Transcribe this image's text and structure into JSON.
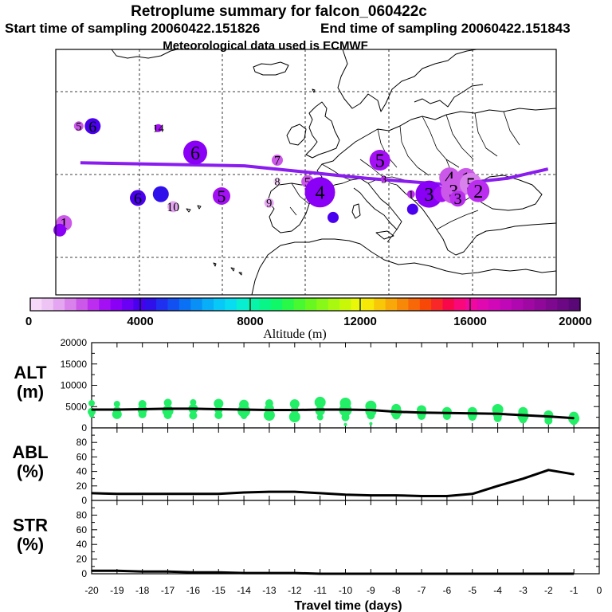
{
  "header": {
    "title": "Retroplume summary for falcon_060422c",
    "start_label": "Start time of sampling 20060422.151826",
    "end_label": "End time of sampling 20060422.151843",
    "met_label": "Meteorological data used is ECMWF"
  },
  "colors": {
    "trajectory": "#8a1cf0",
    "alt_dots": "#22ee66",
    "lines": "#000000",
    "coast": "#000000",
    "colorbar": [
      "#f6d8f8",
      "#eec4f4",
      "#e4a6f0",
      "#d982ec",
      "#cc58ea",
      "#bb2ef0",
      "#a410f4",
      "#8a00f6",
      "#6a00f4",
      "#4a00ee",
      "#3010ea",
      "#2030f0",
      "#1250f2",
      "#0a70f4",
      "#0890f6",
      "#08aef8",
      "#08c8f8",
      "#08dcf0",
      "#08eed0",
      "#08f4a8",
      "#08f688",
      "#10f868",
      "#28f848",
      "#48f830",
      "#68f820",
      "#88f818",
      "#a8f810",
      "#c8f808",
      "#e8f808",
      "#f8e808",
      "#f8c808",
      "#f8a808",
      "#f88808",
      "#f86808",
      "#f84808",
      "#f82828",
      "#f80848",
      "#f80878",
      "#f008a0",
      "#e008b0",
      "#d008b8",
      "#c008b8",
      "#b008b0",
      "#a008a4",
      "#90089a",
      "#7e0890",
      "#6c0884",
      "#5a0878"
    ]
  },
  "map": {
    "trajectory_points": [
      [
        -35,
        42
      ],
      [
        -15,
        41.5
      ],
      [
        0,
        39.5
      ],
      [
        10,
        38.5
      ],
      [
        17,
        39.5
      ],
      [
        22,
        41
      ]
    ],
    "clusters": [
      {
        "lon": -35.2,
        "lat": 47.8,
        "size": 6,
        "color": "#cc58ea",
        "label": "5"
      },
      {
        "lon": -33.5,
        "lat": 47.8,
        "size": 10,
        "color": "#4a00ee",
        "label": "6"
      },
      {
        "lon": -25.5,
        "lat": 47.5,
        "size": 5,
        "color": "#a410f4",
        "label": "14"
      },
      {
        "lon": -21,
        "lat": 43.6,
        "size": 15,
        "color": "#8a00f6",
        "label": "6"
      },
      {
        "lon": -28,
        "lat": 36.4,
        "size": 10,
        "color": "#4a00ee",
        "label": "6"
      },
      {
        "lon": -25.2,
        "lat": 37,
        "size": 10,
        "color": "#3010ea",
        "label": ""
      },
      {
        "lon": -23.7,
        "lat": 35,
        "size": 7,
        "color": "#e4a6f0",
        "label": "10"
      },
      {
        "lon": -17.8,
        "lat": 36.7,
        "size": 11,
        "color": "#a410f4",
        "label": "5"
      },
      {
        "lon": -11,
        "lat": 42.4,
        "size": 7,
        "color": "#cc58ea",
        "label": "7"
      },
      {
        "lon": -12,
        "lat": 35.6,
        "size": 6,
        "color": "#e4a6f0",
        "label": "9"
      },
      {
        "lon": -7.3,
        "lat": 39,
        "size": 8,
        "color": "#cc58ea",
        "label": "5"
      },
      {
        "lon": -11,
        "lat": 39,
        "size": 5,
        "color": "#f6d8f8",
        "label": "8"
      },
      {
        "lon": -5.8,
        "lat": 37.3,
        "size": 19,
        "color": "#8a00f6",
        "label": "4"
      },
      {
        "lon": -4.2,
        "lat": 33.3,
        "size": 7,
        "color": "#4a00ee",
        "label": ""
      },
      {
        "lon": 1.5,
        "lat": 42.4,
        "size": 13,
        "color": "#a410f4",
        "label": "5"
      },
      {
        "lon": 2,
        "lat": 39.4,
        "size": 4,
        "color": "#bb2ef0",
        "label": "3"
      },
      {
        "lon": 5.5,
        "lat": 34.6,
        "size": 7,
        "color": "#4a00ee",
        "label": ""
      },
      {
        "lon": 5.3,
        "lat": 37,
        "size": 5,
        "color": "#bb2ef0",
        "label": "1"
      },
      {
        "lon": 7.5,
        "lat": 37,
        "size": 17,
        "color": "#8a00f6",
        "label": "3"
      },
      {
        "lon": 9,
        "lat": 37,
        "size": 10,
        "color": "#a410f4",
        "label": ""
      },
      {
        "lon": 10,
        "lat": 39.6,
        "size": 13,
        "color": "#cc58ea",
        "label": "4"
      },
      {
        "lon": 10.5,
        "lat": 37.5,
        "size": 16,
        "color": "#cc58ea",
        "label": "3"
      },
      {
        "lon": 11,
        "lat": 36.3,
        "size": 10,
        "color": "#bb2ef0",
        "label": "3"
      },
      {
        "lon": 12,
        "lat": 39.5,
        "size": 13,
        "color": "#cc58ea",
        "label": "1"
      },
      {
        "lon": 12.6,
        "lat": 38.6,
        "size": 14,
        "color": "#d982ec",
        "label": "5"
      },
      {
        "lon": 13.5,
        "lat": 37.5,
        "size": 14,
        "color": "#bb2ef0",
        "label": "2"
      },
      {
        "lon": -37,
        "lat": 32.4,
        "size": 10,
        "color": "#cc58ea",
        "label": "1"
      },
      {
        "lon": -37.5,
        "lat": 31.3,
        "size": 8,
        "color": "#8a00f6",
        "label": ""
      }
    ],
    "lonrange": [
      -38,
      23
    ],
    "latrange": [
      21,
      60
    ]
  },
  "colorbar": {
    "tick_labels": [
      "0",
      "4000",
      "8000",
      "12000",
      "16000",
      "20000"
    ],
    "label": "Altitude (m)",
    "range": [
      0,
      20000
    ]
  },
  "chart_data": [
    {
      "type": "line",
      "panel": "ALT",
      "ylabel": "ALT\n(m)",
      "ylabel_line1": "ALT",
      "ylabel_line2": "(m)",
      "ylim": [
        0,
        20000
      ],
      "yticks": [
        0,
        5000,
        10000,
        15000,
        20000
      ],
      "ytick_labels": [
        "0",
        "5000",
        "10000",
        "15000",
        "20000"
      ],
      "x": [
        -20,
        -19,
        -18,
        -17,
        -16,
        -15,
        -14,
        -13,
        -12,
        -11,
        -10,
        -9,
        -8,
        -7,
        -6,
        -5,
        -4,
        -3,
        -2,
        -1
      ],
      "values": [
        4300,
        4300,
        4400,
        4500,
        4500,
        4400,
        4300,
        4200,
        4200,
        4300,
        4300,
        4200,
        3800,
        3600,
        3500,
        3400,
        3300,
        3000,
        2700,
        2300
      ],
      "scatter": [
        [
          -20,
          5800,
          4
        ],
        [
          -20,
          3800,
          5
        ],
        [
          -20,
          3000,
          3
        ],
        [
          -19,
          5600,
          4
        ],
        [
          -19,
          4100,
          5
        ],
        [
          -19,
          3200,
          6
        ],
        [
          -18,
          5600,
          5
        ],
        [
          -18,
          4200,
          6
        ],
        [
          -18,
          3200,
          5
        ],
        [
          -17,
          5900,
          5
        ],
        [
          -17,
          4000,
          7
        ],
        [
          -17,
          3000,
          5
        ],
        [
          -16,
          6000,
          4
        ],
        [
          -16,
          4500,
          6
        ],
        [
          -16,
          2900,
          5
        ],
        [
          -15,
          5700,
          6
        ],
        [
          -15,
          4200,
          5
        ],
        [
          -15,
          3000,
          5
        ],
        [
          -14,
          5500,
          6
        ],
        [
          -14,
          4000,
          8
        ],
        [
          -14,
          2800,
          4
        ],
        [
          -13,
          5800,
          5
        ],
        [
          -13,
          4500,
          6
        ],
        [
          -13,
          3000,
          7
        ],
        [
          -12,
          5600,
          6
        ],
        [
          -12,
          4200,
          5
        ],
        [
          -12,
          2600,
          7
        ],
        [
          -11,
          6000,
          7
        ],
        [
          -11,
          4000,
          6
        ],
        [
          -11,
          2500,
          4
        ],
        [
          -10,
          5800,
          7
        ],
        [
          -10,
          4200,
          8
        ],
        [
          -10,
          2500,
          5
        ],
        [
          -10,
          800,
          2
        ],
        [
          -9,
          5100,
          7
        ],
        [
          -9,
          3900,
          7
        ],
        [
          -9,
          2900,
          5
        ],
        [
          -9,
          1000,
          2
        ],
        [
          -8,
          4500,
          6
        ],
        [
          -8,
          3700,
          7
        ],
        [
          -8,
          2900,
          5
        ],
        [
          -7,
          4200,
          6
        ],
        [
          -7,
          3500,
          6
        ],
        [
          -7,
          2800,
          5
        ],
        [
          -6,
          3800,
          6
        ],
        [
          -6,
          3300,
          5
        ],
        [
          -6,
          2800,
          5
        ],
        [
          -5,
          3800,
          6
        ],
        [
          -5,
          3100,
          6
        ],
        [
          -5,
          2600,
          5
        ],
        [
          -4,
          4300,
          7
        ],
        [
          -4,
          3200,
          6
        ],
        [
          -4,
          2300,
          5
        ],
        [
          -3,
          3800,
          6
        ],
        [
          -3,
          2800,
          7
        ],
        [
          -3,
          2000,
          5
        ],
        [
          -2,
          3000,
          6
        ],
        [
          -2,
          2400,
          5
        ],
        [
          -2,
          1700,
          5
        ],
        [
          -1,
          2700,
          6
        ],
        [
          -1,
          2200,
          7
        ],
        [
          -1,
          1600,
          5
        ]
      ]
    },
    {
      "type": "line",
      "panel": "ABL",
      "ylabel": "ABL\n(%)",
      "ylabel_line1": "ABL",
      "ylabel_line2": "(%)",
      "ylim": [
        0,
        100
      ],
      "yticks": [
        0,
        20,
        40,
        60,
        80
      ],
      "ytick_labels": [
        "0",
        "20",
        "40",
        "60",
        "80"
      ],
      "x": [
        -20,
        -19,
        -18,
        -17,
        -16,
        -15,
        -14,
        -13,
        -12,
        -11,
        -10,
        -9,
        -8,
        -7,
        -6,
        -5,
        -4,
        -3,
        -2,
        -1
      ],
      "values": [
        10,
        9,
        9,
        9,
        9,
        9,
        11,
        12,
        12,
        10,
        8,
        7,
        7,
        6,
        6,
        9,
        20,
        30,
        42,
        36
      ]
    },
    {
      "type": "line",
      "panel": "STR",
      "ylabel": "STR\n(%)",
      "ylabel_line1": "STR",
      "ylabel_line2": "(%)",
      "ylim": [
        0,
        100
      ],
      "yticks": [
        0,
        20,
        40,
        60,
        80
      ],
      "ytick_labels": [
        "0",
        "20",
        "40",
        "60",
        "80"
      ],
      "x": [
        -20,
        -19,
        -18,
        -17,
        -16,
        -15,
        -14,
        -13,
        -12,
        -11,
        -10,
        -9,
        -8,
        -7,
        -6,
        -5,
        -4,
        -3,
        -2,
        -1
      ],
      "values": [
        4,
        4,
        3,
        3,
        2,
        2,
        1,
        1,
        1,
        0,
        0,
        0,
        0,
        0,
        0,
        0,
        0,
        0,
        0,
        0
      ]
    }
  ],
  "xaxis": {
    "ticks": [
      -20,
      -19,
      -18,
      -17,
      -16,
      -15,
      -14,
      -13,
      -12,
      -11,
      -10,
      -9,
      -8,
      -7,
      -6,
      -5,
      -4,
      -3,
      -2,
      -1,
      0
    ],
    "tick_labels": [
      "-20",
      "-19",
      "-18",
      "-17",
      "-16",
      "-15",
      "-14",
      "-13",
      "-12",
      "-11",
      "-10",
      "-9",
      "-8",
      "-7",
      "-6",
      "-5",
      "-4",
      "-3",
      "-2",
      "-1",
      "0"
    ],
    "xlim": [
      -20,
      0
    ],
    "label": "Travel time (days)"
  }
}
